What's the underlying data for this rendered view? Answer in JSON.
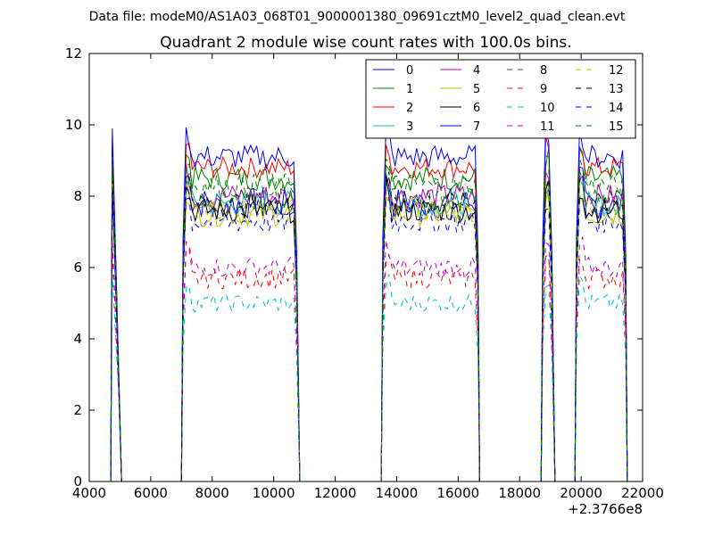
{
  "suptitle": "Data file: modeM0/AS1A03_068T01_9000001380_09691cztM0_level2_quad_clean.evt",
  "chart_data": {
    "type": "line",
    "title": "Quadrant 2 module wise count rates with 100.0s bins.",
    "xlabel": "",
    "ylabel": "",
    "x_offset_label": "+2.3766e8",
    "xlim": [
      4000,
      22000
    ],
    "ylim": [
      0,
      12
    ],
    "xticks": [
      4000,
      6000,
      8000,
      10000,
      12000,
      14000,
      16000,
      18000,
      20000,
      22000
    ],
    "yticks": [
      0,
      2,
      4,
      6,
      8,
      10,
      12
    ],
    "grid": false,
    "legend_position": "top-right",
    "segments": [
      {
        "start": 4750,
        "end": 5000
      },
      {
        "start": 7050,
        "end": 10800
      },
      {
        "start": 13550,
        "end": 16650
      },
      {
        "start": 18750,
        "end": 19100
      },
      {
        "start": 19850,
        "end": 21450
      }
    ],
    "series": [
      {
        "name": "0",
        "color": "#0000ff",
        "dash": "solid",
        "level": 7.8,
        "noise": 0.45
      },
      {
        "name": "1",
        "color": "#008000",
        "dash": "solid",
        "level": 8.5,
        "noise": 0.35
      },
      {
        "name": "2",
        "color": "#ff0000",
        "dash": "solid",
        "level": 8.8,
        "noise": 0.3
      },
      {
        "name": "3",
        "color": "#00bfbf",
        "dash": "solid",
        "level": 7.8,
        "noise": 0.35
      },
      {
        "name": "4",
        "color": "#bf00bf",
        "dash": "solid",
        "level": 8.0,
        "noise": 0.35
      },
      {
        "name": "5",
        "color": "#bfbf00",
        "dash": "solid",
        "level": 7.5,
        "noise": 0.35
      },
      {
        "name": "6",
        "color": "#000000",
        "dash": "solid",
        "level": 7.6,
        "noise": 0.35
      },
      {
        "name": "7",
        "color": "#0000ff",
        "dash": "solid",
        "level": 9.1,
        "noise": 0.35
      },
      {
        "name": "8",
        "color": "#008000",
        "dash": "dashed",
        "level": 7.9,
        "noise": 0.35
      },
      {
        "name": "9",
        "color": "#ff0000",
        "dash": "dashed",
        "level": 5.7,
        "noise": 0.3
      },
      {
        "name": "10",
        "color": "#00bfbf",
        "dash": "dashed",
        "level": 5.0,
        "noise": 0.25
      },
      {
        "name": "11",
        "color": "#bf00bf",
        "dash": "dashed",
        "level": 6.0,
        "noise": 0.3
      },
      {
        "name": "12",
        "color": "#bfbf00",
        "dash": "dashed",
        "level": 7.6,
        "noise": 0.35
      },
      {
        "name": "13",
        "color": "#000000",
        "dash": "dashed",
        "level": 7.8,
        "noise": 0.35
      },
      {
        "name": "14",
        "color": "#0000ff",
        "dash": "dashed",
        "level": 7.3,
        "noise": 0.35
      },
      {
        "name": "15",
        "color": "#008000",
        "dash": "dashed",
        "level": 8.3,
        "noise": 0.35
      }
    ]
  }
}
